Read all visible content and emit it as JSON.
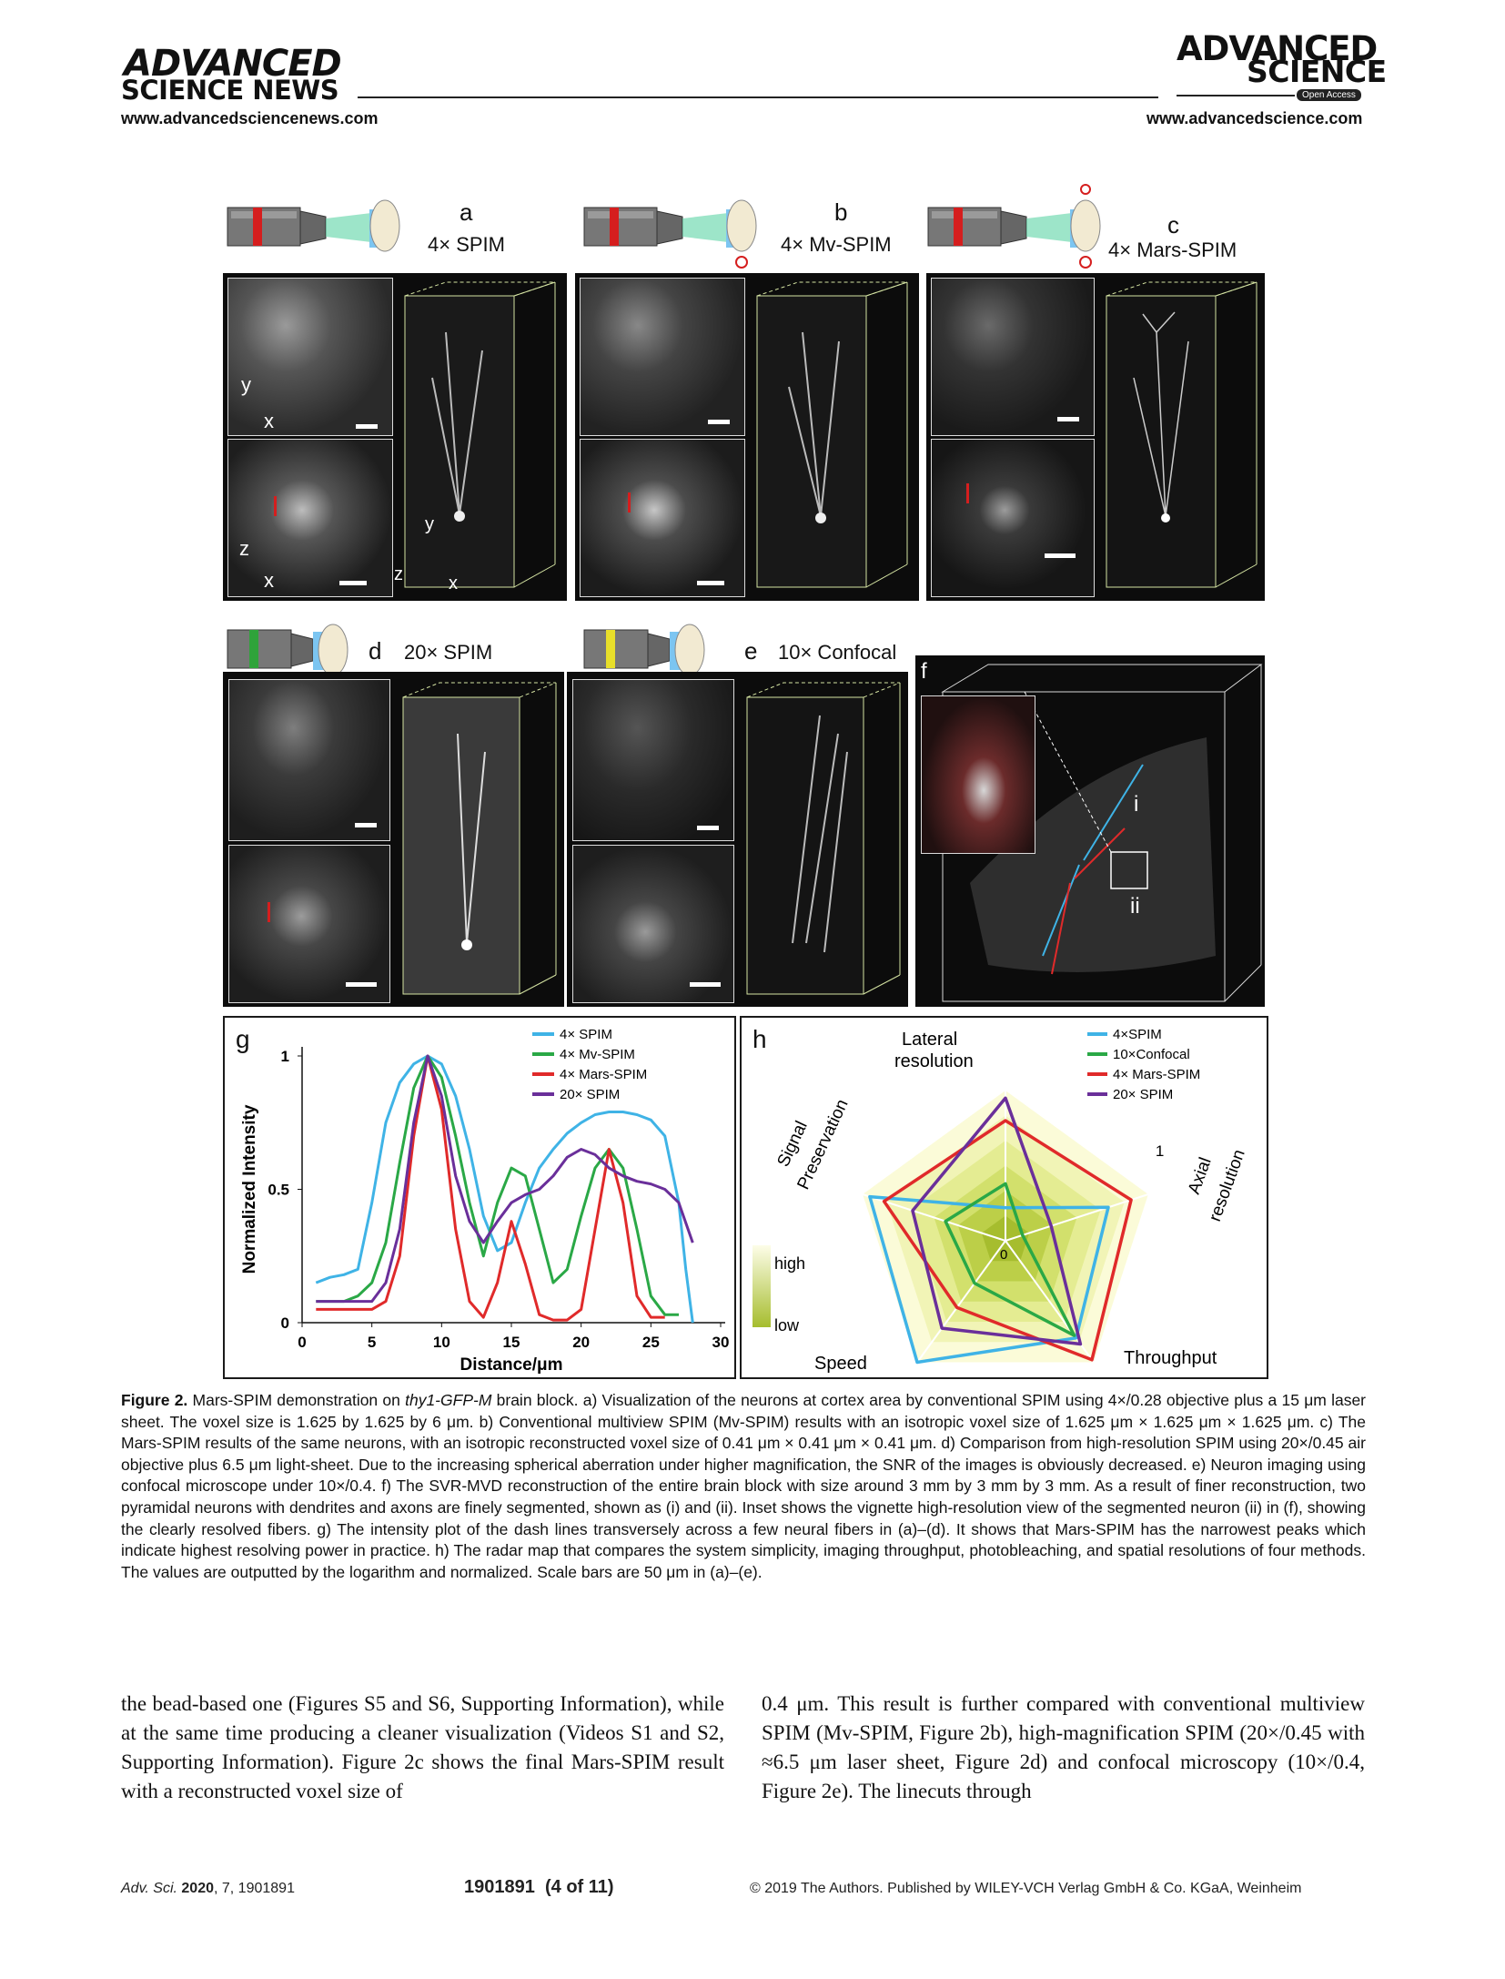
{
  "header": {
    "left_logo_line1": "ADVANCED",
    "left_logo_line2": "SCIENCE NEWS",
    "left_url": "www.advancedsciencenews.com",
    "right_logo_line1": "ADVANCED",
    "right_logo_line2": "SCIENCE",
    "right_badge": "Open Access",
    "right_url": "www.advancedscience.com"
  },
  "figure": {
    "panels": {
      "a": {
        "letter": "a",
        "title": "4× SPIM"
      },
      "b": {
        "letter": "b",
        "title": "4× Mv-SPIM"
      },
      "c": {
        "letter": "c",
        "title": "4× Mars-SPIM"
      },
      "d": {
        "letter": "d",
        "title": "20× SPIM"
      },
      "e": {
        "letter": "e",
        "title": "10× Confocal"
      },
      "f": {
        "letter": "f",
        "inset_i": "i",
        "inset_ii": "ii"
      }
    },
    "axis_labels": {
      "x": "x",
      "y": "y",
      "z": "z"
    }
  },
  "chart_data": [
    {
      "type": "line",
      "panel": "g",
      "xlabel": "Distance/μm",
      "ylabel": "Normalized Intensity",
      "xlim": [
        0,
        30
      ],
      "ylim": [
        0,
        1
      ],
      "xticks": [
        "0",
        "5",
        "10",
        "15",
        "20",
        "25",
        "30"
      ],
      "yticks": [
        "0",
        "0.5",
        "1"
      ],
      "legend_position": "top-right",
      "series": [
        {
          "name": "4× SPIM",
          "color": "#3fb3e6",
          "x": [
            1,
            2,
            3,
            4,
            5,
            6,
            7,
            8,
            9,
            10,
            11,
            12,
            13,
            14,
            15,
            16,
            17,
            18,
            19,
            20,
            21,
            22,
            23,
            24,
            25,
            26,
            27,
            27.5,
            28
          ],
          "y": [
            0.15,
            0.17,
            0.18,
            0.2,
            0.45,
            0.75,
            0.9,
            0.97,
            1.0,
            0.97,
            0.85,
            0.65,
            0.4,
            0.27,
            0.3,
            0.45,
            0.58,
            0.65,
            0.71,
            0.75,
            0.78,
            0.79,
            0.79,
            0.78,
            0.76,
            0.7,
            0.45,
            0.2,
            0.0
          ]
        },
        {
          "name": "4× Mv-SPIM",
          "color": "#2aa846",
          "x": [
            1,
            3,
            4,
            5,
            6,
            7,
            8,
            9,
            10,
            11,
            12,
            13,
            14,
            15,
            16,
            17,
            18,
            19,
            20,
            21,
            22,
            23,
            24,
            25,
            26,
            27
          ],
          "y": [
            0.08,
            0.08,
            0.1,
            0.15,
            0.3,
            0.6,
            0.88,
            1.0,
            0.92,
            0.7,
            0.45,
            0.25,
            0.45,
            0.58,
            0.55,
            0.35,
            0.15,
            0.2,
            0.4,
            0.58,
            0.65,
            0.58,
            0.35,
            0.1,
            0.03,
            0.03
          ]
        },
        {
          "name": "4× Mars-SPIM",
          "color": "#e02a2a",
          "x": [
            1,
            3,
            5,
            6,
            7,
            8,
            9,
            10,
            11,
            12,
            13,
            14,
            15,
            16,
            17,
            18,
            19,
            20,
            21,
            22,
            23,
            24,
            25,
            26
          ],
          "y": [
            0.05,
            0.05,
            0.05,
            0.08,
            0.25,
            0.7,
            1.0,
            0.8,
            0.35,
            0.08,
            0.02,
            0.15,
            0.38,
            0.22,
            0.03,
            0.01,
            0.01,
            0.05,
            0.35,
            0.65,
            0.45,
            0.1,
            0.02,
            0.02
          ]
        },
        {
          "name": "20× SPIM",
          "color": "#6a2f9a",
          "x": [
            1,
            3,
            5,
            6,
            7,
            8,
            9,
            10,
            11,
            12,
            13,
            14,
            15,
            16,
            17,
            18,
            19,
            20,
            21,
            22,
            23,
            24,
            25,
            26,
            27,
            28
          ],
          "y": [
            0.08,
            0.08,
            0.08,
            0.15,
            0.35,
            0.75,
            1.0,
            0.85,
            0.55,
            0.38,
            0.3,
            0.38,
            0.45,
            0.48,
            0.5,
            0.55,
            0.62,
            0.65,
            0.63,
            0.58,
            0.55,
            0.53,
            0.52,
            0.5,
            0.45,
            0.3
          ]
        }
      ]
    },
    {
      "type": "radar",
      "panel": "h",
      "axes": [
        "Lateral resolution",
        "Axial resolution",
        "Throughput",
        "Speed",
        "Signal Preservation"
      ],
      "axis_labels": {
        "lateral": [
          "Lateral",
          "resolution"
        ],
        "axial": [
          "Axial",
          "resolution"
        ],
        "throughput": "Throughput",
        "speed": "Speed",
        "signal": [
          "Signal",
          "Preservation"
        ]
      },
      "range": [
        0,
        1
      ],
      "ticks": [
        "0",
        "1"
      ],
      "colorbar": {
        "high": "high",
        "low": "low"
      },
      "legend_position": "top-right",
      "series": [
        {
          "name": "4×SPIM",
          "color": "#3fb3e6",
          "values": [
            0.22,
            0.72,
            0.8,
            1.0,
            0.95
          ]
        },
        {
          "name": "10×Confocal",
          "color": "#2aa846",
          "values": [
            0.38,
            0.12,
            0.78,
            0.35,
            0.42
          ]
        },
        {
          "name": "4× Mars-SPIM",
          "color": "#e02a2a",
          "values": [
            0.8,
            0.88,
            0.98,
            0.55,
            0.85
          ]
        },
        {
          "name": "20× SPIM",
          "color": "#6a2f9a",
          "values": [
            0.95,
            0.32,
            0.85,
            0.72,
            0.65
          ]
        }
      ]
    }
  ],
  "caption": {
    "label": "Figure 2.",
    "text_1": " Mars-SPIM demonstration on ",
    "italic": "thy1-GFP-M",
    "text_2": " brain block. a) Visualization of the neurons at cortex area by conventional SPIM using 4×/0.28 objective plus a 15 μm laser sheet. The voxel size is 1.625 by 1.625 by 6 μm. b) Conventional multiview SPIM (Mv-SPIM) results with an isotropic voxel size of 1.625 μm × 1.625 μm × 1.625 μm. c) The Mars-SPIM results of the same neurons, with an isotropic reconstructed voxel size of 0.41 μm × 0.41 μm × 0.41 μm. d) Comparison from high-resolution SPIM using 20×/0.45 air objective plus 6.5 μm light-sheet. Due to the increasing spherical aberration under higher magnification, the SNR of the images is obviously decreased. e) Neuron imaging using confocal microscope under 10×/0.4. f) The SVR-MVD reconstruction of the entire brain block with size around 3 mm by 3 mm by 3 mm. As a result of finer reconstruction, two pyramidal neurons with dendrites and axons are finely segmented, shown as (i) and (ii). Inset shows the vignette high-resolution view of the segmented neuron (ii) in (f), showing the clearly resolved fibers. g) The intensity plot of the dash lines transversely across a few neural fibers in (a)–(d). It shows that Mars-SPIM has the narrowest peaks which indicate highest resolving power in practice. h) The radar map that compares the system simplicity, imaging throughput, photobleaching, and spatial resolutions of four methods. The values are outputted by the logarithm and normalized. Scale bars are 50 μm in (a)–(e)."
  },
  "body": {
    "left_col": "the bead-based one (Figures S5 and S6, Supporting Information), while at the same time producing a cleaner visualization (Videos S1 and S2, Supporting Information). Figure 2c shows the final Mars-SPIM result with a reconstructed voxel size of",
    "right_col": "0.4 μm. This result is further compared with conventional multiview SPIM (Mv-SPIM, Figure 2b), high-magnification SPIM (20×/0.45 with ≈6.5 μm laser sheet, Figure 2d) and confocal microscopy (10×/0.4, Figure 2e). The linecuts through"
  },
  "footer": {
    "journal_italic": "Adv. Sci.",
    "journal_year": " 2020",
    "journal_rest": ", 7, 1901891",
    "page": "1901891  (4 of 11)",
    "copyright": "© 2019 The Authors. Published by WILEY-VCH Verlag GmbH & Co. KGaA, Weinheim"
  }
}
